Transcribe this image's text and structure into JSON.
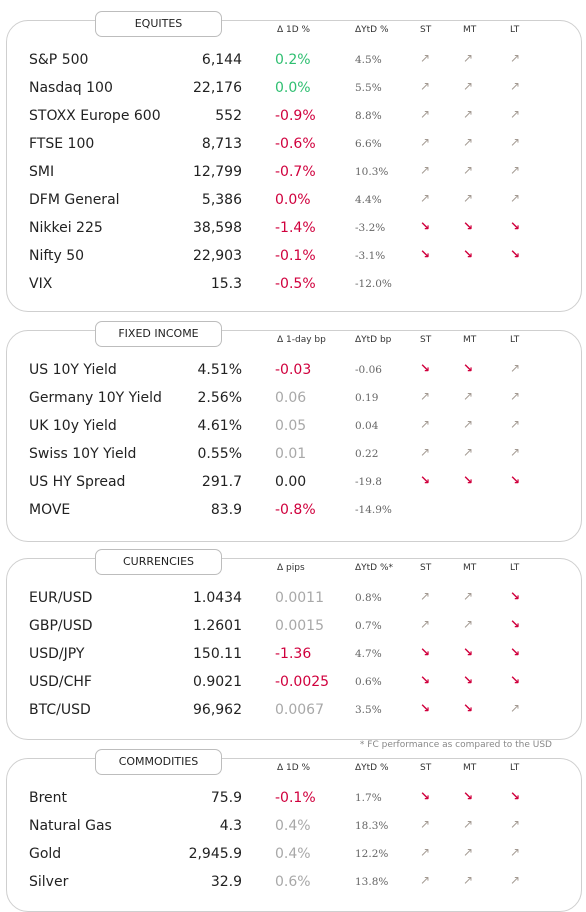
{
  "colors": {
    "pos": "#2fbf71",
    "neg": "#d0003d",
    "neutral": "#a8a8a8",
    "zero": "#222222",
    "up_arrow": "#a39a92",
    "down_arrow": "#d0003d"
  },
  "sections": [
    {
      "title": "EQUITES",
      "h_chg": "Δ 1D %",
      "h_ytd": "ΔYtD %",
      "h_st": "ST",
      "h_mt": "MT",
      "h_lt": "LT",
      "rows": [
        {
          "name": "S&P 500",
          "value": "6,144",
          "chg": "0.2%",
          "chg_style": "pos",
          "ytd": "4.5%",
          "st": "up",
          "mt": "up",
          "lt": "up"
        },
        {
          "name": "Nasdaq 100",
          "value": "22,176",
          "chg": "0.0%",
          "chg_style": "pos",
          "ytd": "5.5%",
          "st": "up",
          "mt": "up",
          "lt": "up"
        },
        {
          "name": "STOXX Europe 600",
          "value": "552",
          "chg": "-0.9%",
          "chg_style": "neg",
          "ytd": "8.8%",
          "st": "up",
          "mt": "up",
          "lt": "up"
        },
        {
          "name": "FTSE 100",
          "value": "8,713",
          "chg": "-0.6%",
          "chg_style": "neg",
          "ytd": "6.6%",
          "st": "up",
          "mt": "up",
          "lt": "up"
        },
        {
          "name": "SMI",
          "value": "12,799",
          "chg": "-0.7%",
          "chg_style": "neg",
          "ytd": "10.3%",
          "st": "up",
          "mt": "up",
          "lt": "up"
        },
        {
          "name": "DFM General",
          "value": "5,386",
          "chg": "0.0%",
          "chg_style": "neg",
          "ytd": "4.4%",
          "st": "up",
          "mt": "up",
          "lt": "up"
        },
        {
          "name": "Nikkei 225",
          "value": "38,598",
          "chg": "-1.4%",
          "chg_style": "neg",
          "ytd": "-3.2%",
          "st": "down",
          "mt": "down",
          "lt": "down"
        },
        {
          "name": "Nifty 50",
          "value": "22,903",
          "chg": "-0.1%",
          "chg_style": "neg",
          "ytd": "-3.1%",
          "st": "down",
          "mt": "down",
          "lt": "down"
        },
        {
          "name": "VIX",
          "value": "15.3",
          "chg": "-0.5%",
          "chg_style": "neg",
          "ytd": "-12.0%",
          "st": "",
          "mt": "",
          "lt": ""
        }
      ]
    },
    {
      "title": "FIXED INCOME",
      "h_chg": "Δ 1-day bp",
      "h_ytd": "ΔYtD bp",
      "h_st": "ST",
      "h_mt": "MT",
      "h_lt": "LT",
      "rows": [
        {
          "name": "US 10Y Yield",
          "value": "4.51%",
          "chg": "-0.03",
          "chg_style": "neg",
          "ytd": "-0.06",
          "st": "down",
          "mt": "down",
          "lt": "up"
        },
        {
          "name": "Germany 10Y Yield",
          "value": "2.56%",
          "chg": "0.06",
          "chg_style": "neutral",
          "ytd": "0.19",
          "st": "up",
          "mt": "up",
          "lt": "up"
        },
        {
          "name": "UK 10y Yield",
          "value": "4.61%",
          "chg": "0.05",
          "chg_style": "neutral",
          "ytd": "0.04",
          "st": "up",
          "mt": "up",
          "lt": "up"
        },
        {
          "name": "Swiss 10Y Yield",
          "value": "0.55%",
          "chg": "0.01",
          "chg_style": "neutral",
          "ytd": "0.22",
          "st": "up",
          "mt": "up",
          "lt": "up"
        },
        {
          "name": "US HY Spread",
          "value": "291.7",
          "chg": "0.00",
          "chg_style": "zero",
          "ytd": "-19.8",
          "st": "down",
          "mt": "down",
          "lt": "down"
        },
        {
          "name": "MOVE",
          "value": "83.9",
          "chg": "-0.8%",
          "chg_style": "neg",
          "ytd": "-14.9%",
          "st": "",
          "mt": "",
          "lt": ""
        }
      ]
    },
    {
      "title": "CURRENCIES",
      "h_chg": "Δ pips",
      "h_ytd": "ΔYtD %*",
      "h_st": "ST",
      "h_mt": "MT",
      "h_lt": "LT",
      "rows": [
        {
          "name": "EUR/USD",
          "value": "1.0434",
          "chg": "0.0011",
          "chg_style": "neutral",
          "ytd": "0.8%",
          "st": "up",
          "mt": "up",
          "lt": "down"
        },
        {
          "name": "GBP/USD",
          "value": "1.2601",
          "chg": "0.0015",
          "chg_style": "neutral",
          "ytd": "0.7%",
          "st": "up",
          "mt": "up",
          "lt": "down"
        },
        {
          "name": "USD/JPY",
          "value": "150.11",
          "chg": "-1.36",
          "chg_style": "neg",
          "ytd": "4.7%",
          "st": "down",
          "mt": "down",
          "lt": "down"
        },
        {
          "name": "USD/CHF",
          "value": "0.9021",
          "chg": "-0.0025",
          "chg_style": "neg",
          "ytd": "0.6%",
          "st": "down",
          "mt": "down",
          "lt": "down"
        },
        {
          "name": "BTC/USD",
          "value": "96,962",
          "chg": "0.0067",
          "chg_style": "neutral",
          "ytd": "3.5%",
          "st": "down",
          "mt": "down",
          "lt": "up"
        }
      ],
      "note": "* FC performance as compared to the USD"
    },
    {
      "title": "COMMODITIES",
      "h_chg": "Δ 1D %",
      "h_ytd": "ΔYtD %",
      "h_st": "ST",
      "h_mt": "MT",
      "h_lt": "LT",
      "rows": [
        {
          "name": "Brent",
          "value": "75.9",
          "chg": "-0.1%",
          "chg_style": "neg",
          "ytd": "1.7%",
          "st": "down",
          "mt": "down",
          "lt": "down"
        },
        {
          "name": "Natural Gas",
          "value": "4.3",
          "chg": "0.4%",
          "chg_style": "neutral",
          "ytd": "18.3%",
          "st": "up",
          "mt": "up",
          "lt": "up"
        },
        {
          "name": "Gold",
          "value": "2,945.9",
          "chg": "0.4%",
          "chg_style": "neutral",
          "ytd": "12.2%",
          "st": "up",
          "mt": "up",
          "lt": "up"
        },
        {
          "name": "Silver",
          "value": "32.9",
          "chg": "0.6%",
          "chg_style": "neutral",
          "ytd": "13.8%",
          "st": "up",
          "mt": "up",
          "lt": "up"
        }
      ]
    }
  ]
}
